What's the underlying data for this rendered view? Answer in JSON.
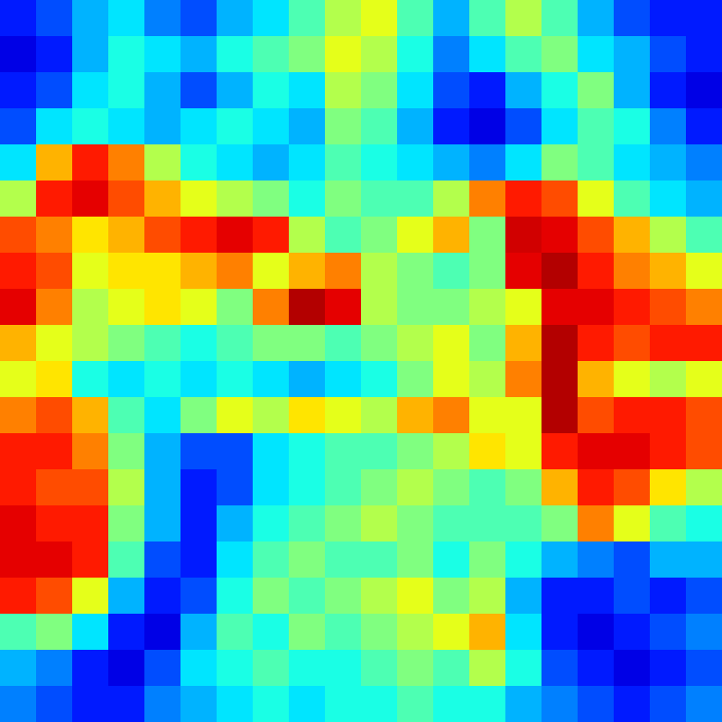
{
  "chart_data": {
    "type": "heatmap",
    "tick_labels": false,
    "color": "jet",
    "color_range": [
      0,
      1
    ],
    "cells": [
      [
        0.15,
        0.2,
        0.3,
        0.35,
        0.25,
        0.2,
        0.3,
        0.35,
        0.45,
        0.55,
        0.6,
        0.45,
        0.3,
        0.45,
        0.55,
        0.45,
        0.3,
        0.2,
        0.15,
        0.15
      ],
      [
        0.1,
        0.15,
        0.3,
        0.4,
        0.35,
        0.3,
        0.4,
        0.45,
        0.5,
        0.6,
        0.55,
        0.4,
        0.25,
        0.35,
        0.45,
        0.5,
        0.35,
        0.3,
        0.2,
        0.15
      ],
      [
        0.15,
        0.2,
        0.35,
        0.4,
        0.3,
        0.2,
        0.3,
        0.4,
        0.35,
        0.55,
        0.5,
        0.35,
        0.2,
        0.15,
        0.3,
        0.4,
        0.5,
        0.3,
        0.15,
        0.1
      ],
      [
        0.2,
        0.35,
        0.4,
        0.35,
        0.3,
        0.35,
        0.4,
        0.35,
        0.3,
        0.5,
        0.45,
        0.3,
        0.15,
        0.1,
        0.2,
        0.35,
        0.45,
        0.4,
        0.25,
        0.15
      ],
      [
        0.35,
        0.7,
        0.85,
        0.75,
        0.55,
        0.4,
        0.35,
        0.3,
        0.35,
        0.45,
        0.4,
        0.35,
        0.3,
        0.25,
        0.35,
        0.5,
        0.45,
        0.35,
        0.3,
        0.25
      ],
      [
        0.55,
        0.85,
        0.9,
        0.8,
        0.7,
        0.6,
        0.55,
        0.5,
        0.4,
        0.5,
        0.45,
        0.45,
        0.55,
        0.75,
        0.85,
        0.8,
        0.6,
        0.45,
        0.35,
        0.3
      ],
      [
        0.8,
        0.75,
        0.65,
        0.7,
        0.8,
        0.85,
        0.9,
        0.85,
        0.55,
        0.45,
        0.5,
        0.6,
        0.7,
        0.5,
        0.92,
        0.9,
        0.8,
        0.7,
        0.55,
        0.45
      ],
      [
        0.85,
        0.8,
        0.6,
        0.65,
        0.65,
        0.7,
        0.75,
        0.6,
        0.7,
        0.75,
        0.55,
        0.5,
        0.45,
        0.5,
        0.9,
        0.95,
        0.85,
        0.75,
        0.7,
        0.6
      ],
      [
        0.9,
        0.75,
        0.55,
        0.6,
        0.65,
        0.6,
        0.5,
        0.75,
        0.95,
        0.9,
        0.55,
        0.5,
        0.5,
        0.55,
        0.6,
        0.9,
        0.9,
        0.85,
        0.8,
        0.75
      ],
      [
        0.7,
        0.6,
        0.55,
        0.5,
        0.45,
        0.4,
        0.45,
        0.5,
        0.5,
        0.45,
        0.5,
        0.55,
        0.6,
        0.5,
        0.7,
        0.95,
        0.85,
        0.8,
        0.85,
        0.85
      ],
      [
        0.6,
        0.65,
        0.4,
        0.35,
        0.4,
        0.35,
        0.4,
        0.35,
        0.3,
        0.35,
        0.4,
        0.5,
        0.6,
        0.55,
        0.75,
        0.95,
        0.7,
        0.6,
        0.55,
        0.6
      ],
      [
        0.75,
        0.8,
        0.7,
        0.45,
        0.35,
        0.5,
        0.6,
        0.55,
        0.65,
        0.6,
        0.55,
        0.7,
        0.75,
        0.6,
        0.6,
        0.95,
        0.8,
        0.85,
        0.85,
        0.8
      ],
      [
        0.85,
        0.85,
        0.75,
        0.5,
        0.3,
        0.2,
        0.2,
        0.35,
        0.4,
        0.45,
        0.45,
        0.5,
        0.55,
        0.65,
        0.6,
        0.85,
        0.9,
        0.9,
        0.85,
        0.8
      ],
      [
        0.85,
        0.8,
        0.8,
        0.55,
        0.3,
        0.15,
        0.2,
        0.35,
        0.4,
        0.45,
        0.5,
        0.55,
        0.5,
        0.45,
        0.5,
        0.7,
        0.85,
        0.8,
        0.65,
        0.55
      ],
      [
        0.9,
        0.85,
        0.85,
        0.5,
        0.3,
        0.15,
        0.3,
        0.4,
        0.45,
        0.5,
        0.55,
        0.5,
        0.45,
        0.45,
        0.45,
        0.5,
        0.75,
        0.6,
        0.45,
        0.4
      ],
      [
        0.9,
        0.9,
        0.85,
        0.45,
        0.2,
        0.15,
        0.35,
        0.45,
        0.5,
        0.45,
        0.45,
        0.5,
        0.4,
        0.5,
        0.4,
        0.3,
        0.25,
        0.2,
        0.3,
        0.3
      ],
      [
        0.85,
        0.8,
        0.6,
        0.3,
        0.15,
        0.2,
        0.4,
        0.5,
        0.45,
        0.5,
        0.55,
        0.6,
        0.5,
        0.55,
        0.3,
        0.15,
        0.15,
        0.2,
        0.15,
        0.2
      ],
      [
        0.45,
        0.5,
        0.35,
        0.15,
        0.1,
        0.3,
        0.45,
        0.4,
        0.5,
        0.45,
        0.5,
        0.55,
        0.6,
        0.7,
        0.35,
        0.15,
        0.1,
        0.15,
        0.2,
        0.25
      ],
      [
        0.3,
        0.25,
        0.15,
        0.1,
        0.2,
        0.35,
        0.4,
        0.45,
        0.4,
        0.4,
        0.45,
        0.5,
        0.45,
        0.55,
        0.4,
        0.2,
        0.15,
        0.1,
        0.15,
        0.2
      ],
      [
        0.25,
        0.2,
        0.15,
        0.15,
        0.25,
        0.3,
        0.35,
        0.4,
        0.35,
        0.4,
        0.4,
        0.45,
        0.4,
        0.4,
        0.3,
        0.25,
        0.2,
        0.15,
        0.2,
        0.25
      ]
    ]
  }
}
